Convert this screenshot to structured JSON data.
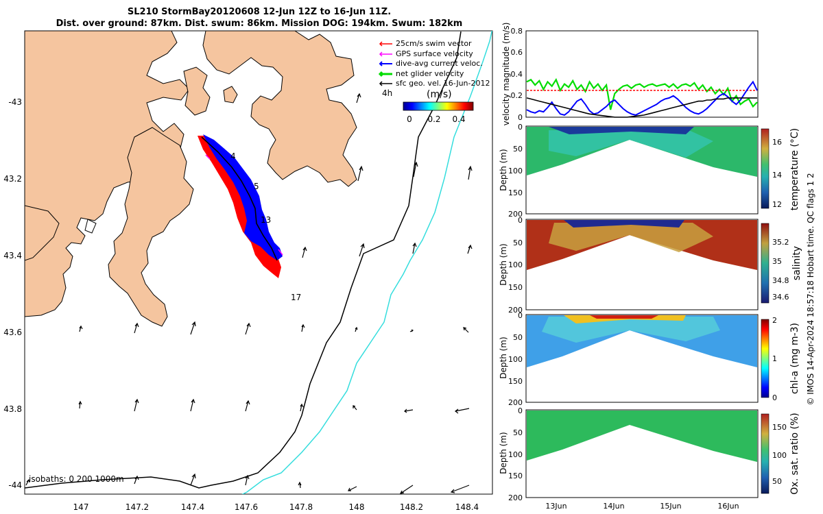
{
  "title_line1": "SL210 StormBay20120608 12-Jun 12Z to 16-Jun 11Z.",
  "title_line2": "Dist. over ground: 87km. Dist. swum: 86km. Mission DOG: 194km. Swum: 182km",
  "footer": "© IMOS 14-Apr-2024 18:57:18 Hobart time. QC flags 1  2",
  "colors": {
    "land": "#F5C59F",
    "swim": "#FF0000",
    "gps": "#FF00FF",
    "diveavg": "#0000FF",
    "net": "#00DD00",
    "geo": "#000000",
    "iso200": "#000000",
    "iso1000": "#33DDDD"
  },
  "chart_data": [
    {
      "type": "map",
      "name": "glider-track-map",
      "x_ticks": [
        "147",
        "147.2",
        "147.4",
        "147.6",
        "147.8",
        "148",
        "148.2",
        "148.4"
      ],
      "y_ticks": [
        "-43",
        "43.2",
        "43.4",
        "43.6",
        "43.8",
        "-44"
      ],
      "legend": [
        {
          "label": "25cm/s swim vector",
          "color": "#FF0000"
        },
        {
          "label": "GPS surface velocity",
          "color": "#FF00FF"
        },
        {
          "label": "dive-avg current veloc.",
          "color": "#0000FF"
        },
        {
          "label": "net glider velocity",
          "color": "#00DD00"
        },
        {
          "label": "sfc geo. vel. 16-Jun-2012",
          "color": "#000000"
        }
      ],
      "legend_extra": "4h",
      "colorbar": {
        "label": "(m/s)",
        "ticks": [
          "0",
          "0.2",
          "0.4"
        ]
      },
      "track_labels": [
        "4",
        "5",
        "13",
        "17"
      ],
      "isobath_text": "isobaths: 0   200  1000m"
    },
    {
      "type": "line",
      "name": "velocity-magnitude",
      "ylabel": "velocity magnitude (m/s)",
      "ylim": [
        0,
        0.8
      ],
      "y_ticks": [
        "0",
        "0.2",
        "0.4",
        "0.6",
        "0.8"
      ],
      "series": [
        {
          "name": "net glider velocity",
          "values": [
            0.33,
            0.35,
            0.3,
            0.34,
            0.26,
            0.33,
            0.29,
            0.35,
            0.25,
            0.31,
            0.28,
            0.34,
            0.26,
            0.3,
            0.24,
            0.33,
            0.27,
            0.31,
            0.25,
            0.3,
            0.07,
            0.22,
            0.26,
            0.29,
            0.3,
            0.27,
            0.3,
            0.31,
            0.28,
            0.3,
            0.31,
            0.29,
            0.3,
            0.31,
            0.28,
            0.31,
            0.27,
            0.3,
            0.31,
            0.29,
            0.32,
            0.26,
            0.3,
            0.24,
            0.28,
            0.22,
            0.26,
            0.21,
            0.27,
            0.15,
            0.2,
            0.12,
            0.15,
            0.17,
            0.1,
            0.14
          ]
        },
        {
          "name": "swim 25 cm/s",
          "values": [
            0.25,
            0.25,
            0.25,
            0.25,
            0.25,
            0.25,
            0.25,
            0.25,
            0.25,
            0.25,
            0.25,
            0.25,
            0.25,
            0.25,
            0.25,
            0.25,
            0.25,
            0.25,
            0.25,
            0.25,
            0.25,
            0.25,
            0.25,
            0.25,
            0.25,
            0.25,
            0.25,
            0.25,
            0.25,
            0.25,
            0.25,
            0.25,
            0.25,
            0.25,
            0.25,
            0.25,
            0.25,
            0.25,
            0.25,
            0.25,
            0.25,
            0.25,
            0.25,
            0.25,
            0.25,
            0.25,
            0.25,
            0.25,
            0.25,
            0.25,
            0.25,
            0.25,
            0.25,
            0.25,
            0.25,
            0.25
          ]
        },
        {
          "name": "dive-avg current",
          "values": [
            0.07,
            0.05,
            0.04,
            0.06,
            0.05,
            0.09,
            0.14,
            0.08,
            0.03,
            0.02,
            0.05,
            0.1,
            0.15,
            0.17,
            0.12,
            0.06,
            0.03,
            0.04,
            0.07,
            0.1,
            0.14,
            0.16,
            0.12,
            0.08,
            0.05,
            0.03,
            0.02,
            0.04,
            0.06,
            0.08,
            0.1,
            0.12,
            0.15,
            0.17,
            0.18,
            0.2,
            0.17,
            0.13,
            0.09,
            0.06,
            0.04,
            0.03,
            0.05,
            0.08,
            0.12,
            0.16,
            0.2,
            0.22,
            0.19,
            0.15,
            0.12,
            0.16,
            0.22,
            0.28,
            0.33,
            0.25
          ]
        },
        {
          "name": "sfc geo velocity",
          "values": [
            0.18,
            0.17,
            0.16,
            0.15,
            0.14,
            0.13,
            0.12,
            0.11,
            0.1,
            0.09,
            0.08,
            0.07,
            0.06,
            0.05,
            0.04,
            0.03,
            0.025,
            0.02,
            0.015,
            0.01,
            0.005,
            0.0,
            0.0,
            0.0,
            0.0,
            0.005,
            0.01,
            0.015,
            0.02,
            0.03,
            0.04,
            0.05,
            0.06,
            0.07,
            0.08,
            0.09,
            0.1,
            0.11,
            0.12,
            0.13,
            0.14,
            0.15,
            0.15,
            0.16,
            0.16,
            0.17,
            0.17,
            0.17,
            0.18,
            0.18,
            0.18,
            0.18,
            0.18,
            0.18,
            0.18,
            0.18
          ]
        }
      ]
    },
    {
      "type": "heatmap",
      "name": "temperature-section",
      "ylabel": "Depth (m)",
      "y_ticks": [
        "0",
        "50",
        "100",
        "150",
        "200"
      ],
      "cbar_label": "temperature (°C)",
      "cbar_ticks": [
        "12",
        "14",
        "16"
      ],
      "crange": [
        11.5,
        17
      ]
    },
    {
      "type": "heatmap",
      "name": "salinity-section",
      "ylabel": "Depth (m)",
      "y_ticks": [
        "0",
        "50",
        "100",
        "150",
        "200"
      ],
      "cbar_label": "salinity",
      "cbar_ticks": [
        "34.6",
        "34.8",
        "35",
        "35.2"
      ],
      "crange": [
        34.5,
        35.3
      ]
    },
    {
      "type": "heatmap",
      "name": "chla-section",
      "ylabel": "Depth (m)",
      "y_ticks": [
        "0",
        "50",
        "100",
        "150",
        "200"
      ],
      "cbar_label": "chl-a (mg m-3)",
      "cbar_ticks": [
        "0",
        "1",
        "2"
      ],
      "crange": [
        0,
        2
      ]
    },
    {
      "type": "heatmap",
      "name": "oxygen-section",
      "ylabel": "Depth (m)",
      "y_ticks": [
        "0",
        "50",
        "100",
        "150",
        "200"
      ],
      "x_ticks": [
        "13Jun",
        "14Jun",
        "15Jun",
        "16Jun"
      ],
      "cbar_label": "Ox. sat. ratio (%)",
      "cbar_ticks": [
        "50",
        "100",
        "150"
      ],
      "crange": [
        20,
        175
      ]
    }
  ]
}
